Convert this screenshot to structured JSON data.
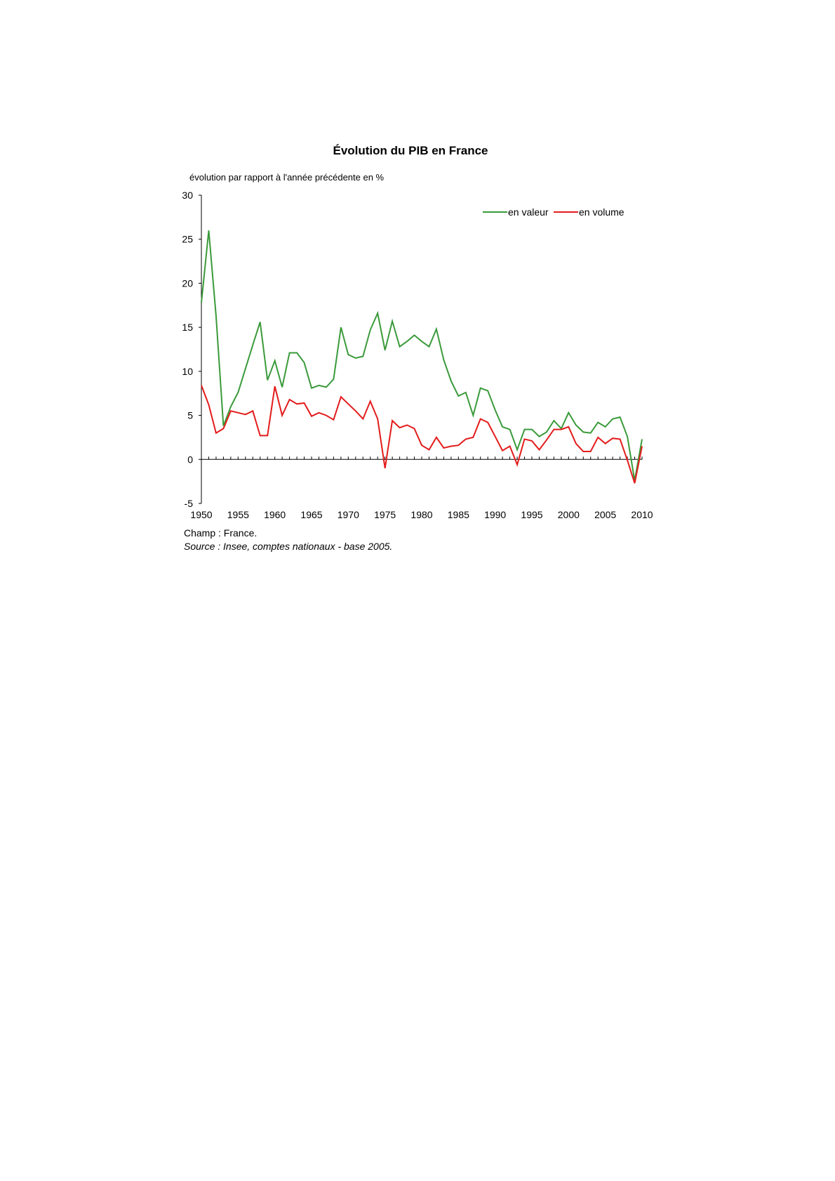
{
  "chart_data": {
    "type": "line",
    "title": "Évolution du PIB en France",
    "ylabel": "évolution par rapport à l'année précédente en %",
    "xlabel": "",
    "ylim": [
      -5,
      30
    ],
    "yticks": [
      -5,
      0,
      5,
      10,
      15,
      20,
      25,
      30
    ],
    "xlim": [
      1950,
      2010
    ],
    "xticks": [
      1950,
      1955,
      1960,
      1965,
      1970,
      1975,
      1980,
      1985,
      1990,
      1995,
      2000,
      2005,
      2010
    ],
    "grid": false,
    "legend_position": "top-right",
    "x": [
      1950,
      1951,
      1952,
      1953,
      1954,
      1955,
      1956,
      1957,
      1958,
      1959,
      1960,
      1961,
      1962,
      1963,
      1964,
      1965,
      1966,
      1967,
      1968,
      1969,
      1970,
      1971,
      1972,
      1973,
      1974,
      1975,
      1976,
      1977,
      1978,
      1979,
      1980,
      1981,
      1982,
      1983,
      1984,
      1985,
      1986,
      1987,
      1988,
      1989,
      1990,
      1991,
      1992,
      1993,
      1994,
      1995,
      1996,
      1997,
      1998,
      1999,
      2000,
      2001,
      2002,
      2003,
      2004,
      2005,
      2006,
      2007,
      2008,
      2009,
      2010
    ],
    "series": [
      {
        "name": "en valeur",
        "color": "#3a9a3a",
        "values": [
          17.8,
          26.0,
          16.3,
          3.8,
          6.0,
          7.6,
          10.3,
          13.0,
          15.6,
          9.0,
          11.2,
          8.2,
          12.1,
          12.1,
          11.0,
          8.1,
          8.4,
          8.2,
          9.1,
          15.0,
          11.9,
          11.5,
          11.7,
          14.7,
          16.6,
          12.4,
          15.7,
          12.8,
          13.4,
          14.1,
          13.4,
          12.8,
          14.8,
          11.3,
          8.9,
          7.2,
          7.6,
          5.0,
          8.1,
          7.8,
          5.6,
          3.7,
          3.4,
          1.1,
          3.4,
          3.4,
          2.6,
          3.1,
          4.4,
          3.5,
          5.3,
          3.9,
          3.1,
          3.0,
          4.2,
          3.7,
          4.6,
          4.8,
          2.6,
          -2.4,
          2.3
        ]
      },
      {
        "name": "en volume",
        "color": "#e31b1b",
        "values": [
          8.4,
          6.2,
          3.0,
          3.5,
          5.5,
          5.3,
          5.1,
          5.5,
          2.7,
          2.7,
          8.3,
          5.0,
          6.8,
          6.3,
          6.4,
          4.9,
          5.3,
          5.0,
          4.5,
          7.1,
          6.3,
          5.5,
          4.6,
          6.6,
          4.6,
          -1.0,
          4.4,
          3.6,
          3.9,
          3.5,
          1.6,
          1.1,
          2.5,
          1.3,
          1.5,
          1.6,
          2.3,
          2.5,
          4.6,
          4.2,
          2.6,
          1.0,
          1.5,
          -0.6,
          2.3,
          2.1,
          1.1,
          2.2,
          3.4,
          3.4,
          3.7,
          1.8,
          0.9,
          0.9,
          2.5,
          1.8,
          2.4,
          2.3,
          -0.1,
          -2.7,
          1.5
        ]
      }
    ]
  },
  "notes": {
    "champ": "Champ : France.",
    "source": "Source : Insee, comptes nationaux - base 2005."
  }
}
